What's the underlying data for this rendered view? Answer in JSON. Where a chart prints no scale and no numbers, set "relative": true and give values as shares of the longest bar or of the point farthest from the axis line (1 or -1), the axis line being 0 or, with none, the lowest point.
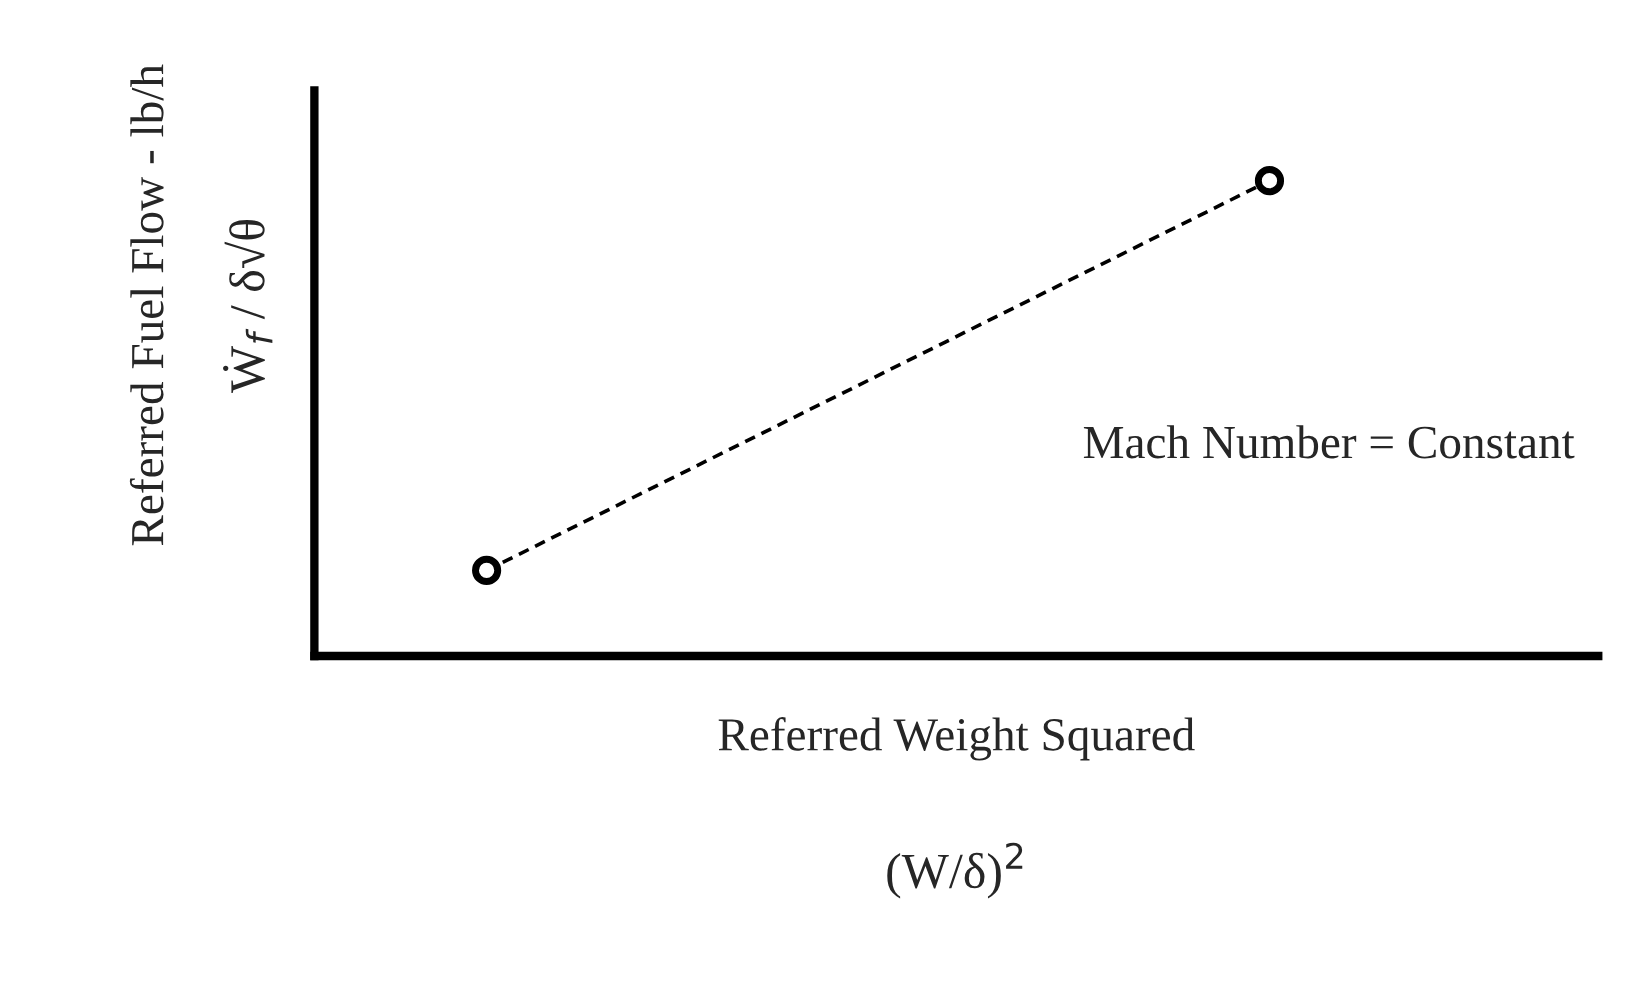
{
  "chart_data": {
    "type": "line",
    "relative": true,
    "xlabel": "Referred Weight Squared",
    "ylabel": "Referred Fuel Flow - lb/h",
    "categories": [
      null,
      null
    ],
    "series": [
      {
        "color": "#000000",
        "values": [
          0.18,
          1
        ]
      }
    ],
    "marker": "circle",
    "line_style": "dashed",
    "grid": false,
    "legend": false,
    "tick_labels": false,
    "annotations": [
      "Mach Number = Constant",
      "Ẇ$_{f}$ / δ√θ",
      "(W/δ)$^{2}$"
    ]
  }
}
